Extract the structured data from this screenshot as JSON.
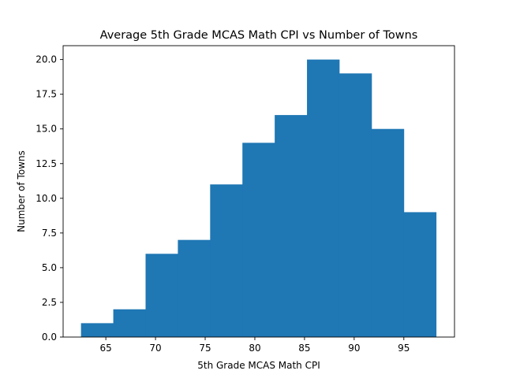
{
  "chart_data": {
    "type": "bar",
    "title": "Average 5th Grade MCAS Math CPI vs Number of Towns",
    "xlabel": "5th Grade MCAS Math CPI",
    "ylabel": "Number of Towns",
    "bin_edges": [
      62.5,
      65.75,
      69.0,
      72.25,
      75.5,
      78.75,
      82.0,
      85.25,
      88.5,
      91.75,
      95.0,
      98.25
    ],
    "counts": [
      1,
      2,
      6,
      7,
      11,
      14,
      16,
      20,
      19,
      15,
      9
    ],
    "xlim": [
      60.7,
      100.1
    ],
    "ylim": [
      0,
      21
    ],
    "xticks": [
      65,
      70,
      75,
      80,
      85,
      90,
      95
    ],
    "xtick_labels": [
      "65",
      "70",
      "75",
      "80",
      "85",
      "90",
      "95"
    ],
    "yticks": [
      0,
      2.5,
      5,
      7.5,
      10,
      12.5,
      15,
      17.5,
      20
    ],
    "ytick_labels": [
      "0.0",
      "2.5",
      "5.0",
      "7.5",
      "10.0",
      "12.5",
      "15.0",
      "17.5",
      "20.0"
    ],
    "bar_color": "#1f77b4",
    "grid": false,
    "legend": "none"
  }
}
